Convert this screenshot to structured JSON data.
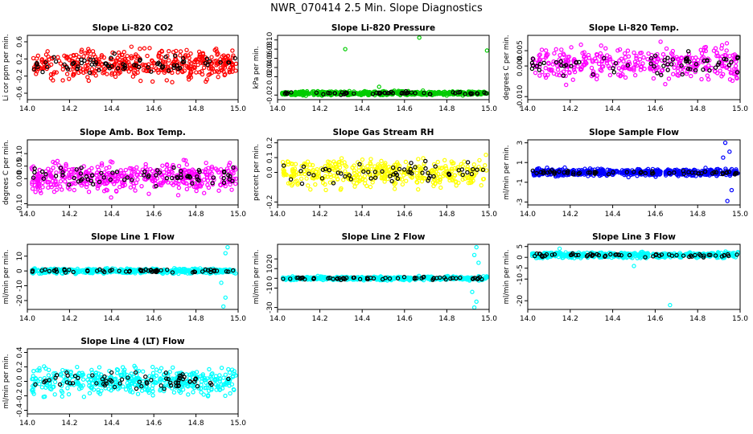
{
  "title": "NWR_070414  2.5 Min. Slope Diagnostics",
  "colors": {
    "red": "#ff0000",
    "green": "#00cc00",
    "magenta": "#ff00ff",
    "yellow": "#ffff00",
    "blue": "#0000ff",
    "cyan": "#00ffff",
    "black": "#000000"
  },
  "chart_data": [
    {
      "type": "scatter",
      "title": "Slope Li-820 CO2",
      "ylabel": "Li cor ppm per min.",
      "xlim": [
        14.0,
        15.0
      ],
      "ylim": [
        -0.75,
        0.75
      ],
      "xticks": [
        "14.0",
        "14.2",
        "14.4",
        "14.6",
        "14.8",
        "15.0"
      ],
      "yticks": [
        {
          "v": -0.6,
          "l": "-0.6"
        },
        {
          "v": -0.2,
          "l": "-0.2"
        },
        {
          "v": 0.2,
          "l": "0.2"
        },
        {
          "v": 0.6,
          "l": "0.6"
        }
      ],
      "color": "red",
      "center": 0.08,
      "spread": 0.55,
      "bias": 0,
      "n_color": 420,
      "n_black": 70,
      "outliers": []
    },
    {
      "type": "scatter",
      "title": "Slope Li-820 Pressure",
      "ylabel": "kPa per min.",
      "xlim": [
        14.0,
        15.0
      ],
      "ylim": [
        -0.03,
        0.11
      ],
      "xticks": [
        "14.0",
        "14.2",
        "14.4",
        "14.6",
        "14.8",
        "15.0"
      ],
      "yticks": [
        {
          "v": -0.02,
          "l": "-0.02"
        },
        {
          "v": 0.02,
          "l": "0.02"
        },
        {
          "v": 0.04,
          "l": "0.04"
        },
        {
          "v": 0.06,
          "l": "0.06"
        },
        {
          "v": 0.08,
          "l": "0.08"
        },
        {
          "v": 0.1,
          "l": "0.10"
        }
      ],
      "color": "green",
      "center": -0.016,
      "spread": 0.007,
      "bias": 0,
      "n_color": 520,
      "n_black": 55,
      "outliers": [
        {
          "x": 14.32,
          "y": 0.08
        },
        {
          "x": 14.67,
          "y": 0.105
        },
        {
          "x": 14.99,
          "y": 0.077
        },
        {
          "x": 14.48,
          "y": -0.002
        }
      ]
    },
    {
      "type": "scatter",
      "title": "Slope Li-820 Temp.",
      "ylabel": "degrees C per min.",
      "xlim": [
        14.0,
        15.0
      ],
      "ylim": [
        -0.011,
        0.01
      ],
      "xticks": [
        "14.0",
        "14.2",
        "14.4",
        "14.6",
        "14.8",
        "15.0"
      ],
      "yticks": [
        {
          "v": -0.01,
          "l": "-0.010"
        },
        {
          "v": 0.0,
          "l": "0.000"
        },
        {
          "v": 0.005,
          "l": "0.005"
        }
      ],
      "color": "magenta",
      "center": 0.0008,
      "spread": 0.0085,
      "bias": 0,
      "n_color": 360,
      "n_black": 65,
      "outliers": []
    },
    {
      "type": "scatter",
      "title": "Slope Amb. Box Temp.",
      "ylabel": "degrees C per min.",
      "xlim": [
        14.0,
        15.0
      ],
      "ylim": [
        -0.105,
        0.155
      ],
      "xticks": [
        "14.0",
        "14.2",
        "14.4",
        "14.6",
        "14.8",
        "15.0"
      ],
      "yticks": [
        {
          "v": -0.1,
          "l": "-0.10"
        },
        {
          "v": 0.0,
          "l": "0.00"
        },
        {
          "v": 0.05,
          "l": "0.05"
        },
        {
          "v": 0.1,
          "l": "0.10"
        }
      ],
      "color": "magenta",
      "center": 0.005,
      "spread": 0.09,
      "bias": 0,
      "n_color": 460,
      "n_black": 70,
      "outliers": []
    },
    {
      "type": "scatter",
      "title": "Slope Gas Stream RH",
      "ylabel": "percent per min.",
      "xlim": [
        14.0,
        15.0
      ],
      "ylim": [
        -0.22,
        0.22
      ],
      "xticks": [
        "14.0",
        "14.2",
        "14.4",
        "14.6",
        "14.8",
        "15.0"
      ],
      "yticks": [
        {
          "v": -0.2,
          "l": "-0.2"
        },
        {
          "v": 0.0,
          "l": "0.0"
        },
        {
          "v": 0.1,
          "l": "0.1"
        },
        {
          "v": 0.2,
          "l": "0.2"
        }
      ],
      "color": "yellow",
      "center": 0.0,
      "spread": 0.16,
      "bias": 0,
      "n_color": 420,
      "n_black": 60,
      "outliers": []
    },
    {
      "type": "scatter",
      "title": "Slope Sample Flow",
      "ylabel": "ml/min per min.",
      "xlim": [
        14.0,
        15.0
      ],
      "ylim": [
        -3.3,
        3.3
      ],
      "xticks": [
        "14.0",
        "14.2",
        "14.4",
        "14.6",
        "14.8",
        "15.0"
      ],
      "yticks": [
        {
          "v": -3,
          "l": "-3"
        },
        {
          "v": -1,
          "l": "-1"
        },
        {
          "v": 1,
          "l": "1"
        },
        {
          "v": 3,
          "l": "3"
        }
      ],
      "color": "blue",
      "center": 0.0,
      "spread": 0.55,
      "bias": 0,
      "n_color": 560,
      "n_black": 60,
      "outliers": [
        {
          "x": 14.93,
          "y": 3.0
        },
        {
          "x": 14.95,
          "y": 2.1
        },
        {
          "x": 14.94,
          "y": -2.9
        },
        {
          "x": 14.92,
          "y": 1.5
        },
        {
          "x": 14.96,
          "y": -1.8
        }
      ]
    },
    {
      "type": "scatter",
      "title": "Slope Line 1 Flow",
      "ylabel": "ml/min per min.",
      "xlim": [
        14.0,
        15.0
      ],
      "ylim": [
        -26,
        18
      ],
      "xticks": [
        "14.0",
        "14.2",
        "14.4",
        "14.6",
        "14.8",
        "15.0"
      ],
      "yticks": [
        {
          "v": -20,
          "l": "-20"
        },
        {
          "v": -10,
          "l": "-10"
        },
        {
          "v": 0,
          "l": "0"
        },
        {
          "v": 10,
          "l": "10"
        }
      ],
      "color": "cyan",
      "center": 0.0,
      "spread": 2.5,
      "bias": -1,
      "n_color": 520,
      "n_black": 60,
      "outliers": [
        {
          "x": 14.95,
          "y": 16
        },
        {
          "x": 14.94,
          "y": 12
        },
        {
          "x": 14.93,
          "y": -24
        },
        {
          "x": 14.94,
          "y": -18
        },
        {
          "x": 14.92,
          "y": -8
        }
      ]
    },
    {
      "type": "scatter",
      "title": "Slope Line 2 Flow",
      "ylabel": "ml/min per min.",
      "xlim": [
        14.0,
        15.0
      ],
      "ylim": [
        -32,
        35
      ],
      "xticks": [
        "14.0",
        "14.2",
        "14.4",
        "14.6",
        "14.8",
        "15.0"
      ],
      "yticks": [
        {
          "v": -30,
          "l": "-30"
        },
        {
          "v": -10,
          "l": "-10"
        },
        {
          "v": 0,
          "l": "0"
        },
        {
          "v": 10,
          "l": "10"
        },
        {
          "v": 20,
          "l": "20"
        }
      ],
      "color": "cyan",
      "center": 0.0,
      "spread": 3.0,
      "bias": 0,
      "n_color": 500,
      "n_black": 60,
      "outliers": [
        {
          "x": 14.94,
          "y": 32
        },
        {
          "x": 14.93,
          "y": 24
        },
        {
          "x": 14.95,
          "y": 16
        },
        {
          "x": 14.93,
          "y": -30
        },
        {
          "x": 14.94,
          "y": -24
        },
        {
          "x": 14.92,
          "y": -14
        }
      ]
    },
    {
      "type": "scatter",
      "title": "Slope Line 3 Flow",
      "ylabel": "ml/min per min.",
      "xlim": [
        14.0,
        15.0
      ],
      "ylim": [
        -24,
        6
      ],
      "xticks": [
        "14.0",
        "14.2",
        "14.4",
        "14.6",
        "14.8",
        "15.0"
      ],
      "yticks": [
        {
          "v": -20,
          "l": "-20"
        },
        {
          "v": -10,
          "l": "-10"
        },
        {
          "v": -5,
          "l": "-5"
        },
        {
          "v": 0,
          "l": "0"
        },
        {
          "v": 5,
          "l": "5"
        }
      ],
      "color": "cyan",
      "center": 1.0,
      "spread": 2.2,
      "bias": 0,
      "n_color": 500,
      "n_black": 60,
      "outliers": [
        {
          "x": 14.67,
          "y": -22
        },
        {
          "x": 14.5,
          "y": -4
        },
        {
          "x": 14.15,
          "y": 4
        }
      ]
    },
    {
      "type": "scatter",
      "title": "Slope Line 4 (LT) Flow",
      "ylabel": "ml/min per min.",
      "xlim": [
        14.0,
        15.0
      ],
      "ylim": [
        -0.45,
        0.45
      ],
      "xticks": [
        "14.0",
        "14.2",
        "14.4",
        "14.6",
        "14.8",
        "15.0"
      ],
      "yticks": [
        {
          "v": -0.4,
          "l": "-0.4"
        },
        {
          "v": -0.2,
          "l": "-0.2"
        },
        {
          "v": 0.0,
          "l": "0.0"
        },
        {
          "v": 0.2,
          "l": "0.2"
        },
        {
          "v": 0.4,
          "l": "0.4"
        }
      ],
      "color": "cyan",
      "center": 0.0,
      "spread": 0.3,
      "bias": 0,
      "n_color": 440,
      "n_black": 65,
      "outliers": []
    }
  ]
}
